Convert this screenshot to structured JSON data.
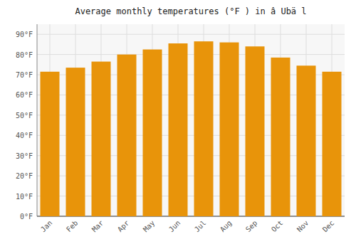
{
  "chart_data": {
    "type": "bar",
    "title": "Average monthly temperatures (°F ) in â Ubä l",
    "categories": [
      "Jan",
      "Feb",
      "Mar",
      "Apr",
      "May",
      "Jun",
      "Jul",
      "Aug",
      "Sep",
      "Oct",
      "Nov",
      "Dec"
    ],
    "values": [
      71.5,
      73.5,
      76.5,
      80.0,
      82.5,
      85.5,
      86.5,
      86.0,
      84.0,
      78.5,
      74.5,
      71.5
    ],
    "color": "#E8940A",
    "ylim": [
      0,
      95
    ],
    "yticks": [
      {
        "value": 0,
        "label": "0°F"
      },
      {
        "value": 10,
        "label": "10°F"
      },
      {
        "value": 20,
        "label": "20°F"
      },
      {
        "value": 30,
        "label": "30°F"
      },
      {
        "value": 40,
        "label": "40°F"
      },
      {
        "value": 50,
        "label": "50°F"
      },
      {
        "value": 60,
        "label": "60°F"
      },
      {
        "value": 70,
        "label": "70°F"
      },
      {
        "value": 80,
        "label": "80°F"
      },
      {
        "value": 90,
        "label": "90°F"
      }
    ],
    "grid": true
  }
}
